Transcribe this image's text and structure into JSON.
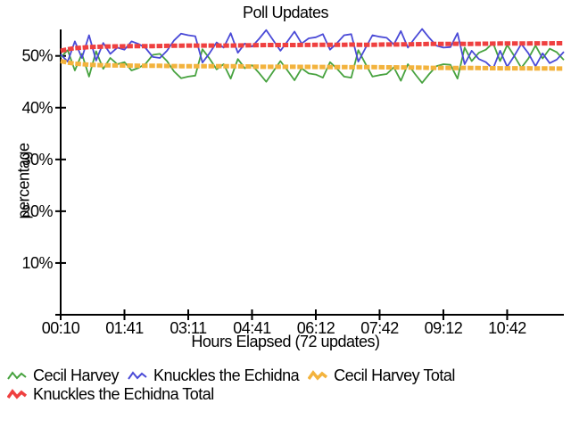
{
  "title": "Poll Updates",
  "chart_data": {
    "type": "line",
    "title": "Poll Updates",
    "xlabel": "Hours Elapsed (72 updates)",
    "ylabel": "percentage",
    "updates_count": 72,
    "ylim": [
      0,
      55.1
    ],
    "grid": false,
    "legend_position": "bottom-left",
    "y_ticks": [
      {
        "value": 10,
        "label": "10%"
      },
      {
        "value": 20,
        "label": "20%"
      },
      {
        "value": 30,
        "label": "30%"
      },
      {
        "value": 40,
        "label": "40%"
      },
      {
        "value": 50,
        "label": "50%"
      }
    ],
    "x_ticks": [
      {
        "index": 0,
        "label": "00:10"
      },
      {
        "index": 9,
        "label": "01:41"
      },
      {
        "index": 18,
        "label": "03:11"
      },
      {
        "index": 27,
        "label": "04:41"
      },
      {
        "index": 36,
        "label": "06:12"
      },
      {
        "index": 45,
        "label": "07:42"
      },
      {
        "index": 54,
        "label": "09:12"
      },
      {
        "index": 63,
        "label": "10:42"
      }
    ],
    "legend": [
      {
        "name": "Cecil Harvey",
        "color": "#47a23f",
        "thick": false
      },
      {
        "name": "Knuckles the Echidna",
        "color": "#4a4ad7",
        "thick": false
      },
      {
        "name": "Cecil Harvey Total",
        "color": "#f3b33d",
        "thick": true
      },
      {
        "name": "Knuckles the Echidna Total",
        "color": "#ef4040",
        "thick": true
      }
    ],
    "series": [
      {
        "name": "Cecil Harvey",
        "color": "#47a23f",
        "width": 1.8,
        "dash": null,
        "values": [
          49.7,
          51.1,
          47.2,
          50.4,
          46.0,
          50.9,
          47.5,
          49.6,
          48.4,
          48.8,
          47.2,
          47.7,
          48.5,
          50.2,
          50.4,
          49.0,
          47.0,
          45.7,
          46.0,
          46.2,
          51.3,
          49.5,
          47.4,
          48.4,
          45.6,
          49.4,
          47.6,
          48.2,
          46.7,
          45.0,
          47.0,
          49.0,
          47.2,
          45.3,
          47.6,
          46.6,
          46.4,
          45.8,
          48.8,
          47.5,
          46.0,
          45.8,
          51.1,
          48.5,
          46.0,
          46.3,
          46.5,
          47.8,
          45.2,
          48.4,
          46.5,
          44.8,
          46.5,
          48.0,
          48.4,
          48.3,
          45.6,
          51.6,
          49.0,
          50.6,
          51.2,
          52.5,
          49.0,
          52.1,
          50.0,
          47.7,
          49.5,
          52.0,
          49.5,
          51.4,
          50.7,
          49.2
        ]
      },
      {
        "name": "Knuckles the Echidna",
        "color": "#4a4ad7",
        "width": 1.8,
        "dash": null,
        "values": [
          50.3,
          48.9,
          52.8,
          49.6,
          54.0,
          49.1,
          52.5,
          50.4,
          51.6,
          51.2,
          52.8,
          52.3,
          51.5,
          49.8,
          49.6,
          51.0,
          53.0,
          54.3,
          54.0,
          53.8,
          48.7,
          50.5,
          52.6,
          51.6,
          54.4,
          50.6,
          52.4,
          51.8,
          53.3,
          55.0,
          53.0,
          51.0,
          52.8,
          54.7,
          52.4,
          53.4,
          53.6,
          54.2,
          51.2,
          52.5,
          54.0,
          54.2,
          48.9,
          51.5,
          54.0,
          53.7,
          53.5,
          52.2,
          54.8,
          51.6,
          53.5,
          55.2,
          53.5,
          52.0,
          51.6,
          51.7,
          54.4,
          48.4,
          51.0,
          49.4,
          48.8,
          47.5,
          51.0,
          47.9,
          50.0,
          52.3,
          50.5,
          48.0,
          50.5,
          48.6,
          49.3,
          50.8
        ]
      },
      {
        "name": "Cecil Harvey Total",
        "color": "#f3b33d",
        "width": 5,
        "dash": "6.5 1.8",
        "values": [
          49.0,
          48.7,
          48.5,
          48.4,
          48.3,
          48.25,
          48.2,
          48.18,
          48.16,
          48.14,
          48.12,
          48.1,
          48.1,
          48.1,
          48.08,
          48.06,
          48.04,
          48.02,
          48.0,
          48.0,
          48.0,
          48.0,
          48.0,
          48.0,
          48.0,
          47.98,
          47.96,
          47.94,
          47.92,
          47.9,
          47.9,
          47.9,
          47.9,
          47.9,
          47.88,
          47.88,
          47.86,
          47.86,
          47.84,
          47.84,
          47.84,
          47.82,
          47.85,
          47.85,
          47.84,
          47.82,
          47.8,
          47.8,
          47.78,
          47.76,
          47.74,
          47.72,
          47.7,
          47.7,
          47.7,
          47.68,
          47.66,
          47.7,
          47.68,
          47.66,
          47.64,
          47.62,
          47.6,
          47.6,
          47.6,
          47.6,
          47.6,
          47.58,
          47.58,
          47.58,
          47.56,
          47.56
        ]
      },
      {
        "name": "Knuckles the Echidna Total",
        "color": "#ef4040",
        "width": 5,
        "dash": "6.5 1.8",
        "values": [
          51.0,
          51.3,
          51.5,
          51.6,
          51.7,
          51.75,
          51.8,
          51.82,
          51.84,
          51.86,
          51.88,
          51.9,
          51.9,
          51.9,
          51.92,
          51.94,
          51.96,
          51.98,
          52.0,
          52.0,
          52.0,
          52.0,
          52.0,
          52.0,
          52.0,
          52.02,
          52.04,
          52.06,
          52.08,
          52.1,
          52.1,
          52.1,
          52.1,
          52.1,
          52.12,
          52.12,
          52.14,
          52.14,
          52.16,
          52.16,
          52.16,
          52.18,
          52.15,
          52.15,
          52.16,
          52.18,
          52.2,
          52.2,
          52.22,
          52.24,
          52.26,
          52.28,
          52.3,
          52.3,
          52.3,
          52.32,
          52.34,
          52.3,
          52.32,
          52.34,
          52.36,
          52.38,
          52.4,
          52.4,
          52.4,
          52.4,
          52.4,
          52.42,
          52.42,
          52.42,
          52.44,
          52.44
        ]
      }
    ]
  }
}
